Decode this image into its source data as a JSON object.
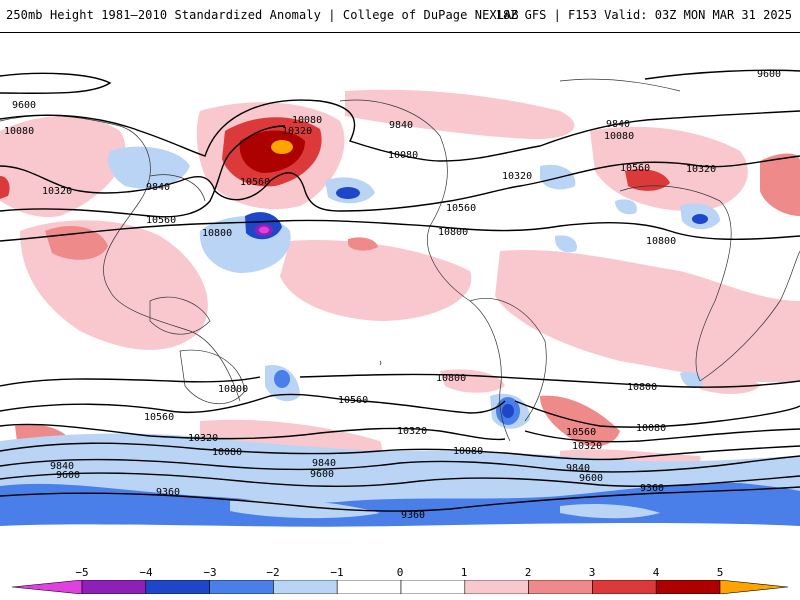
{
  "header": {
    "left_title": "250mb Height 1981–2010 Standardized Anomaly | College of DuPage NEXLAB",
    "right_title": "18Z GFS | F153 Valid: 03Z MON MAR 31 2025"
  },
  "map": {
    "contour_labels": [
      "9600",
      "10080",
      "10320",
      "9840",
      "10560",
      "10800",
      "10080",
      "10320",
      "10560",
      "9840",
      "10080",
      "10320",
      "10560",
      "10800",
      "9840",
      "10080",
      "10560",
      "10320",
      "10800",
      "9600",
      "10800",
      "10560",
      "10320",
      "10080",
      "9840",
      "9600",
      "10800",
      "10560",
      "10320",
      "10080",
      "9840",
      "9600",
      "9360",
      "10800",
      "10560",
      "10320",
      "10080",
      "9840",
      "9600",
      "9360",
      "10800"
    ]
  },
  "colorbar": {
    "labels": [
      "−5",
      "−4",
      "−3",
      "−2",
      "−1",
      "0",
      "1",
      "2",
      "3",
      "4",
      "5"
    ],
    "colors": [
      "#e040e0",
      "#8e1fb8",
      "#1e46c8",
      "#4a7ee8",
      "#b9d4f5",
      "#ffffff",
      "#f9c8ce",
      "#ee8a8a",
      "#dc3a3a",
      "#ad0000",
      "#ffa300"
    ]
  }
}
